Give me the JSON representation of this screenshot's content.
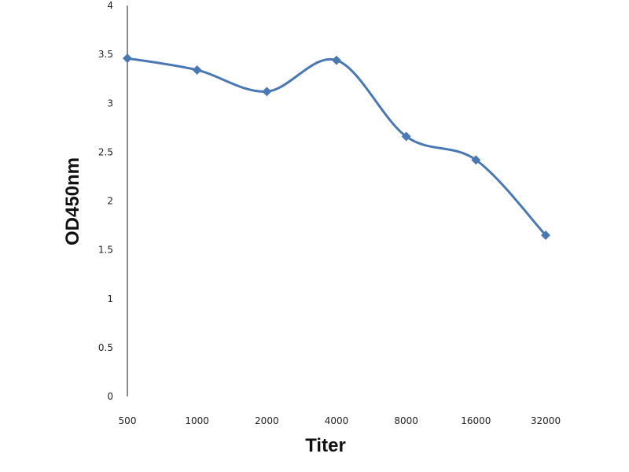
{
  "chart_data": {
    "type": "line",
    "xlabel": "Titer",
    "ylabel": "OD450nm",
    "categories": [
      "500",
      "1000",
      "2000",
      "4000",
      "8000",
      "16000",
      "32000"
    ],
    "series": [
      {
        "values": [
          3.46,
          3.34,
          3.12,
          3.44,
          2.66,
          2.42,
          1.65
        ]
      }
    ],
    "ylim": [
      0,
      4
    ],
    "yticks": [
      "0",
      "0.5",
      "1",
      "1.5",
      "2",
      "2.5",
      "3",
      "3.5",
      "4"
    ],
    "grid": false,
    "smooth": true,
    "marker": "diamond",
    "colors": {
      "series": "#4a78b4",
      "axis": "#8c8c8c"
    }
  }
}
